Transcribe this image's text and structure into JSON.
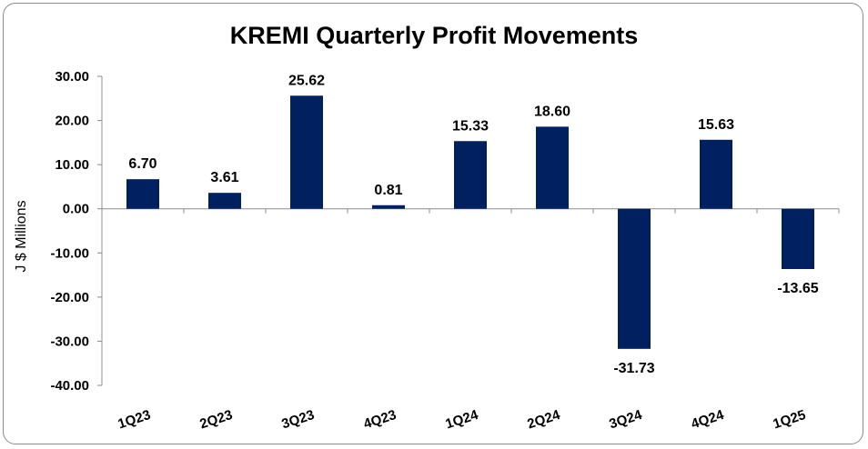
{
  "chart_data": {
    "type": "bar",
    "title": "KREMI Quarterly Profit Movements",
    "xlabel": "",
    "ylabel": "J $ Millions",
    "categories": [
      "1Q23",
      "2Q23",
      "3Q23",
      "4Q23",
      "1Q24",
      "2Q24",
      "3Q24",
      "4Q24",
      "1Q25"
    ],
    "values": [
      6.7,
      3.61,
      25.62,
      0.81,
      15.33,
      18.6,
      -31.73,
      15.63,
      -13.65
    ],
    "value_labels": [
      "6.70",
      "3.61",
      "25.62",
      "0.81",
      "15.33",
      "18.60",
      "-31.73",
      "15.63",
      "-13.65"
    ],
    "ylim": [
      -40,
      30
    ],
    "yticks": [
      30,
      20,
      10,
      0,
      -10,
      -20,
      -30,
      -40
    ],
    "ytick_labels": [
      "30.00",
      "20.00",
      "10.00",
      "0.00",
      "-10.00",
      "-20.00",
      "-30.00",
      "-40.00"
    ],
    "bar_color": "#002060",
    "grid": false,
    "legend": "none"
  }
}
